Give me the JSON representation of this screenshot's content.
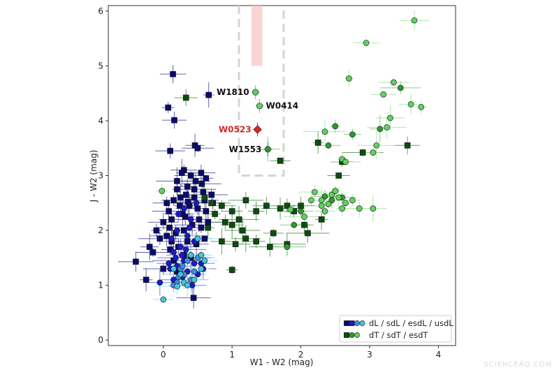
{
  "watermark": "SCIENCEAQ.COM",
  "chart_data": {
    "type": "scatter",
    "xlabel": "W1 - W2 (mag)",
    "ylabel": "J - W2 (mag)",
    "xlim": [
      -0.8,
      4.25
    ],
    "ylim": [
      -0.1,
      6.1
    ],
    "xticks": [
      0,
      1,
      2,
      3,
      4
    ],
    "yticks": [
      0,
      1,
      2,
      3,
      4,
      5,
      6
    ],
    "grid": false,
    "legend_position": "bottom-right",
    "colors": {
      "dL": "#0a0a6e",
      "sdL": "#1a1acc",
      "esdL": "#3a8ee6",
      "usdL": "#3ec8d8",
      "dT": "#0d4d0d",
      "sdT": "#2f9a2f",
      "esdT": "#5fd35f",
      "highlight": "#d02a2a",
      "band": "#f7c6c6",
      "box": "#d4d4d4"
    },
    "legend": [
      {
        "label": "dL / sdL / esdL / usdL",
        "markers": [
          "#0a0a6e",
          "#1a1acc",
          "#3a8ee6",
          "#3ec8d8"
        ],
        "shapes": [
          "square",
          "square",
          "circle",
          "circle"
        ]
      },
      {
        "label": "dT / sdT / esdT",
        "markers": [
          "#0d4d0d",
          "#2f9a2f",
          "#5fd35f"
        ],
        "shapes": [
          "square",
          "circle",
          "circle"
        ]
      }
    ],
    "region_box": {
      "x": [
        1.1,
        1.75
      ],
      "y": [
        3.0,
        6.1
      ],
      "style": "dashed"
    },
    "shaded_band": {
      "x": [
        1.28,
        1.44
      ],
      "y": [
        5.0,
        6.1
      ]
    },
    "annotations": [
      {
        "label": "W1810",
        "x": 1.34,
        "y": 4.52,
        "color": "#5fd35f",
        "shape": "circle",
        "text_color": "#111111",
        "side": "left"
      },
      {
        "label": "W0414",
        "x": 1.4,
        "y": 4.27,
        "color": "#5fd35f",
        "shape": "circle",
        "text_color": "#111111",
        "side": "right"
      },
      {
        "label": "W0523",
        "x": 1.37,
        "y": 3.84,
        "color": "#d02a2a",
        "shape": "diamond",
        "text_color": "#d02a2a",
        "side": "left"
      },
      {
        "label": "W1553",
        "x": 1.52,
        "y": 3.48,
        "color": "#2f9a2f",
        "shape": "circle",
        "text_color": "#111111",
        "side": "left"
      }
    ],
    "series": [
      {
        "group": "dL",
        "marker": "square",
        "color": "#0a0a6e",
        "err": "#3b3b9e",
        "points": [
          [
            0.14,
            4.85
          ],
          [
            0.07,
            4.24
          ],
          [
            0.16,
            4.01
          ],
          [
            0.66,
            4.47
          ],
          [
            0.1,
            3.45
          ],
          [
            0.46,
            3.55
          ],
          [
            0.5,
            3.5
          ],
          [
            0.3,
            3.1
          ],
          [
            0.4,
            3.0
          ],
          [
            0.55,
            3.05
          ],
          [
            0.62,
            2.95
          ],
          [
            0.2,
            2.9
          ],
          [
            0.35,
            2.8
          ],
          [
            0.45,
            2.75
          ],
          [
            0.58,
            2.7
          ],
          [
            0.7,
            2.65
          ],
          [
            0.25,
            2.6
          ],
          [
            0.15,
            2.55
          ],
          [
            0.05,
            2.5
          ],
          [
            0.38,
            2.45
          ],
          [
            0.5,
            2.4
          ],
          [
            0.62,
            2.35
          ],
          [
            0.28,
            2.3
          ],
          [
            0.12,
            2.2
          ],
          [
            0.0,
            2.15
          ],
          [
            0.42,
            2.1
          ],
          [
            0.55,
            2.05
          ],
          [
            0.3,
            2.0
          ],
          [
            0.18,
            1.95
          ],
          [
            0.05,
            1.9
          ],
          [
            -0.05,
            1.85
          ],
          [
            0.35,
            1.8
          ],
          [
            0.48,
            1.75
          ],
          [
            0.22,
            1.7
          ],
          [
            0.1,
            1.65
          ],
          [
            -0.15,
            1.6
          ],
          [
            0.3,
            1.55
          ],
          [
            0.4,
            1.5
          ],
          [
            0.15,
            1.45
          ],
          [
            -0.4,
            1.43
          ],
          [
            0.6,
            2.55
          ],
          [
            0.72,
            2.5
          ],
          [
            0.33,
            2.65
          ],
          [
            0.08,
            2.35
          ],
          [
            -0.2,
            1.7
          ],
          [
            0.2,
            2.75
          ],
          [
            0.47,
            2.9
          ],
          [
            0.27,
            3.05
          ],
          [
            0.52,
            2.2
          ],
          [
            0.65,
            2.15
          ],
          [
            -0.25,
            1.1
          ],
          [
            0.0,
            1.3
          ],
          [
            0.2,
            1.25
          ],
          [
            0.44,
            0.77
          ],
          [
            0.36,
            2.52
          ],
          [
            0.12,
            1.8
          ],
          [
            0.6,
            1.85
          ],
          [
            0.24,
            2.45
          ],
          [
            0.45,
            2.6
          ],
          [
            0.56,
            2.85
          ],
          [
            0.09,
            2.05
          ],
          [
            0.32,
            2.25
          ],
          [
            -0.1,
            2.0
          ]
        ]
      },
      {
        "group": "sdL",
        "marker": "circle",
        "color": "#1a1acc",
        "err": "#5a5ae0",
        "points": [
          [
            0.3,
            2.4
          ],
          [
            0.4,
            2.2
          ],
          [
            0.2,
            2.0
          ],
          [
            0.35,
            1.9
          ],
          [
            0.45,
            1.8
          ],
          [
            0.25,
            1.7
          ],
          [
            0.15,
            1.6
          ],
          [
            0.4,
            1.55
          ],
          [
            0.3,
            1.45
          ],
          [
            0.2,
            1.35
          ],
          [
            0.1,
            1.3
          ],
          [
            0.35,
            1.25
          ],
          [
            0.5,
            1.2
          ],
          [
            0.45,
            1.4
          ],
          [
            0.28,
            1.15
          ],
          [
            0.15,
            1.1
          ],
          [
            -0.05,
            1.05
          ],
          [
            0.55,
            1.4
          ],
          [
            0.38,
            2.05
          ],
          [
            0.22,
            2.3
          ],
          [
            0.48,
            2.5
          ],
          [
            0.12,
            1.85
          ],
          [
            0.33,
            1.65
          ],
          [
            0.58,
            1.3
          ],
          [
            0.18,
            1.5
          ],
          [
            0.42,
            1.0
          ],
          [
            0.27,
            1.55
          ],
          [
            0.08,
            1.4
          ]
        ]
      },
      {
        "group": "esdL",
        "marker": "circle",
        "color": "#3a8ee6",
        "err": "#7ab2ee",
        "points": [
          [
            0.3,
            1.2
          ],
          [
            0.2,
            1.05
          ],
          [
            0.4,
            1.1
          ],
          [
            0.25,
            1.3
          ],
          [
            0.35,
            1.45
          ],
          [
            0.15,
            1.0
          ],
          [
            0.45,
            1.25
          ],
          [
            0.28,
            1.35
          ],
          [
            0.5,
            1.5
          ],
          [
            0.22,
            1.15
          ]
        ]
      },
      {
        "group": "usdL",
        "marker": "circle",
        "color": "#3ec8d8",
        "err": "#8fe0ea",
        "points": [
          [
            0.0,
            0.74
          ],
          [
            0.2,
            0.98
          ],
          [
            0.3,
            1.05
          ],
          [
            0.45,
            1.1
          ],
          [
            0.55,
            1.3
          ],
          [
            0.35,
            1.0
          ],
          [
            0.25,
            1.2
          ],
          [
            0.5,
            1.85
          ],
          [
            0.55,
            1.55
          ],
          [
            0.4,
            1.55
          ],
          [
            0.15,
            1.3
          ],
          [
            0.6,
            1.45
          ]
        ]
      },
      {
        "group": "dT",
        "marker": "square",
        "color": "#0d4d0d",
        "err": "#3f8a3f",
        "points": [
          [
            0.33,
            4.42
          ],
          [
            1.7,
            3.27
          ],
          [
            2.25,
            3.6
          ],
          [
            3.55,
            3.55
          ],
          [
            2.9,
            3.42
          ],
          [
            2.6,
            3.25
          ],
          [
            2.55,
            3.0
          ],
          [
            0.6,
            2.6
          ],
          [
            0.7,
            2.5
          ],
          [
            0.85,
            2.45
          ],
          [
            1.0,
            2.35
          ],
          [
            1.2,
            2.55
          ],
          [
            1.35,
            2.35
          ],
          [
            1.1,
            2.2
          ],
          [
            1.0,
            2.1
          ],
          [
            0.9,
            2.15
          ],
          [
            0.75,
            2.3
          ],
          [
            0.65,
            2.05
          ],
          [
            1.2,
            1.85
          ],
          [
            1.35,
            1.8
          ],
          [
            1.6,
            1.95
          ],
          [
            1.55,
            1.7
          ],
          [
            1.8,
            1.75
          ],
          [
            2.05,
            2.1
          ],
          [
            2.3,
            2.2
          ],
          [
            2.1,
            1.95
          ],
          [
            1.9,
            2.35
          ],
          [
            2.0,
            2.45
          ],
          [
            1.8,
            2.45
          ],
          [
            1.7,
            2.4
          ],
          [
            1.5,
            2.45
          ],
          [
            1.05,
            1.75
          ],
          [
            1.0,
            1.28
          ],
          [
            0.85,
            1.8
          ],
          [
            1.15,
            2.0
          ]
        ]
      },
      {
        "group": "sdT",
        "marker": "circle",
        "color": "#2f9a2f",
        "err": "#6fc06f",
        "points": [
          [
            1.52,
            3.48
          ],
          [
            2.4,
            3.55
          ],
          [
            3.45,
            4.6
          ],
          [
            2.75,
            3.75
          ],
          [
            2.5,
            3.9
          ],
          [
            3.15,
            3.85
          ],
          [
            1.8,
            1.7
          ],
          [
            1.9,
            2.1
          ],
          [
            2.0,
            2.35
          ],
          [
            2.35,
            2.62
          ],
          [
            2.45,
            2.55
          ],
          [
            2.6,
            2.6
          ]
        ]
      },
      {
        "group": "esdT",
        "marker": "circle",
        "color": "#5fd35f",
        "err": "#9ce09c",
        "points": [
          [
            3.65,
            5.83
          ],
          [
            2.95,
            5.42
          ],
          [
            2.7,
            4.77
          ],
          [
            3.2,
            4.48
          ],
          [
            3.35,
            4.7
          ],
          [
            3.75,
            4.25
          ],
          [
            3.6,
            4.3
          ],
          [
            2.35,
            3.8
          ],
          [
            3.05,
            3.42
          ],
          [
            3.1,
            3.55
          ],
          [
            3.25,
            3.88
          ],
          [
            3.3,
            4.05
          ],
          [
            2.6,
            3.3
          ],
          [
            2.65,
            3.25
          ],
          [
            2.2,
            2.7
          ],
          [
            2.3,
            2.55
          ],
          [
            2.45,
            2.65
          ],
          [
            2.55,
            2.6
          ],
          [
            2.65,
            2.5
          ],
          [
            2.75,
            2.55
          ],
          [
            2.5,
            2.72
          ],
          [
            2.85,
            2.4
          ],
          [
            3.05,
            2.4
          ],
          [
            -0.02,
            2.72
          ],
          [
            2.4,
            2.48
          ],
          [
            2.3,
            2.45
          ],
          [
            2.15,
            2.55
          ],
          [
            2.6,
            2.4
          ],
          [
            2.35,
            2.35
          ],
          [
            1.85,
            2.38
          ],
          [
            2.05,
            2.25
          ]
        ]
      }
    ]
  }
}
